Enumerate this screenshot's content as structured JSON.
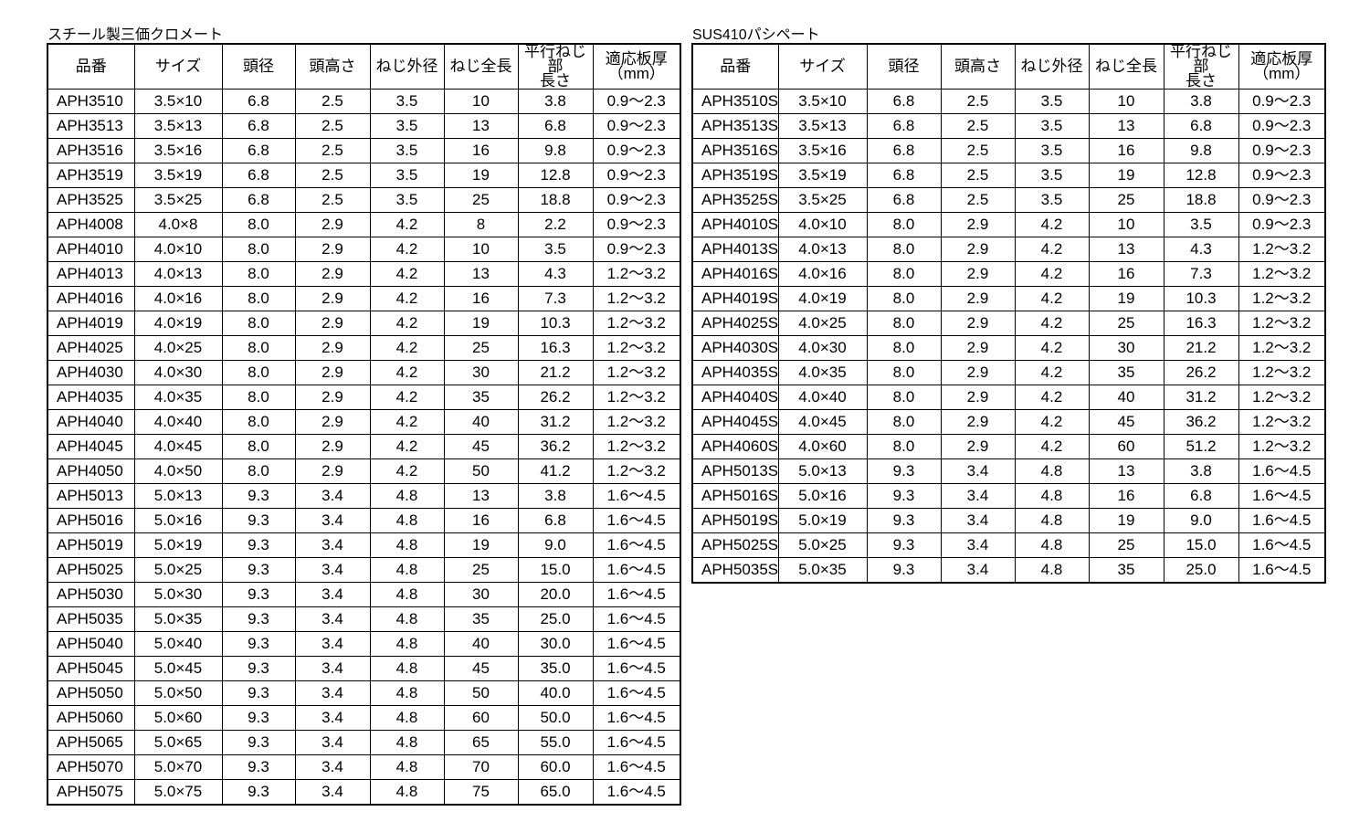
{
  "headers": [
    "品番",
    "サイズ",
    "頭径",
    "頭高さ",
    "ねじ外径",
    "ねじ全長",
    "平行ねじ部\n長さ",
    "適応板厚\n（mm）"
  ],
  "tables": [
    {
      "title": "スチール製三価クロメート",
      "rows": [
        [
          "APH3510",
          "3.5×10",
          "6.8",
          "2.5",
          "3.5",
          "10",
          "3.8",
          "0.9～2.3"
        ],
        [
          "APH3513",
          "3.5×13",
          "6.8",
          "2.5",
          "3.5",
          "13",
          "6.8",
          "0.9～2.3"
        ],
        [
          "APH3516",
          "3.5×16",
          "6.8",
          "2.5",
          "3.5",
          "16",
          "9.8",
          "0.9～2.3"
        ],
        [
          "APH3519",
          "3.5×19",
          "6.8",
          "2.5",
          "3.5",
          "19",
          "12.8",
          "0.9～2.3"
        ],
        [
          "APH3525",
          "3.5×25",
          "6.8",
          "2.5",
          "3.5",
          "25",
          "18.8",
          "0.9～2.3"
        ],
        [
          "APH4008",
          "4.0×8",
          "8.0",
          "2.9",
          "4.2",
          "8",
          "2.2",
          "0.9～2.3"
        ],
        [
          "APH4010",
          "4.0×10",
          "8.0",
          "2.9",
          "4.2",
          "10",
          "3.5",
          "0.9～2.3"
        ],
        [
          "APH4013",
          "4.0×13",
          "8.0",
          "2.9",
          "4.2",
          "13",
          "4.3",
          "1.2～3.2"
        ],
        [
          "APH4016",
          "4.0×16",
          "8.0",
          "2.9",
          "4.2",
          "16",
          "7.3",
          "1.2～3.2"
        ],
        [
          "APH4019",
          "4.0×19",
          "8.0",
          "2.9",
          "4.2",
          "19",
          "10.3",
          "1.2～3.2"
        ],
        [
          "APH4025",
          "4.0×25",
          "8.0",
          "2.9",
          "4.2",
          "25",
          "16.3",
          "1.2～3.2"
        ],
        [
          "APH4030",
          "4.0×30",
          "8.0",
          "2.9",
          "4.2",
          "30",
          "21.2",
          "1.2～3.2"
        ],
        [
          "APH4035",
          "4.0×35",
          "8.0",
          "2.9",
          "4.2",
          "35",
          "26.2",
          "1.2～3.2"
        ],
        [
          "APH4040",
          "4.0×40",
          "8.0",
          "2.9",
          "4.2",
          "40",
          "31.2",
          "1.2～3.2"
        ],
        [
          "APH4045",
          "4.0×45",
          "8.0",
          "2.9",
          "4.2",
          "45",
          "36.2",
          "1.2～3.2"
        ],
        [
          "APH4050",
          "4.0×50",
          "8.0",
          "2.9",
          "4.2",
          "50",
          "41.2",
          "1.2～3.2"
        ],
        [
          "APH5013",
          "5.0×13",
          "9.3",
          "3.4",
          "4.8",
          "13",
          "3.8",
          "1.6～4.5"
        ],
        [
          "APH5016",
          "5.0×16",
          "9.3",
          "3.4",
          "4.8",
          "16",
          "6.8",
          "1.6～4.5"
        ],
        [
          "APH5019",
          "5.0×19",
          "9.3",
          "3.4",
          "4.8",
          "19",
          "9.0",
          "1.6～4.5"
        ],
        [
          "APH5025",
          "5.0×25",
          "9.3",
          "3.4",
          "4.8",
          "25",
          "15.0",
          "1.6～4.5"
        ],
        [
          "APH5030",
          "5.0×30",
          "9.3",
          "3.4",
          "4.8",
          "30",
          "20.0",
          "1.6～4.5"
        ],
        [
          "APH5035",
          "5.0×35",
          "9.3",
          "3.4",
          "4.8",
          "35",
          "25.0",
          "1.6～4.5"
        ],
        [
          "APH5040",
          "5.0×40",
          "9.3",
          "3.4",
          "4.8",
          "40",
          "30.0",
          "1.6～4.5"
        ],
        [
          "APH5045",
          "5.0×45",
          "9.3",
          "3.4",
          "4.8",
          "45",
          "35.0",
          "1.6～4.5"
        ],
        [
          "APH5050",
          "5.0×50",
          "9.3",
          "3.4",
          "4.8",
          "50",
          "40.0",
          "1.6～4.5"
        ],
        [
          "APH5060",
          "5.0×60",
          "9.3",
          "3.4",
          "4.8",
          "60",
          "50.0",
          "1.6～4.5"
        ],
        [
          "APH5065",
          "5.0×65",
          "9.3",
          "3.4",
          "4.8",
          "65",
          "55.0",
          "1.6～4.5"
        ],
        [
          "APH5070",
          "5.0×70",
          "9.3",
          "3.4",
          "4.8",
          "70",
          "60.0",
          "1.6～4.5"
        ],
        [
          "APH5075",
          "5.0×75",
          "9.3",
          "3.4",
          "4.8",
          "75",
          "65.0",
          "1.6～4.5"
        ]
      ]
    },
    {
      "title": "SUS410パシペート",
      "rows": [
        [
          "APH3510S",
          "3.5×10",
          "6.8",
          "2.5",
          "3.5",
          "10",
          "3.8",
          "0.9～2.3"
        ],
        [
          "APH3513S",
          "3.5×13",
          "6.8",
          "2.5",
          "3.5",
          "13",
          "6.8",
          "0.9～2.3"
        ],
        [
          "APH3516S",
          "3.5×16",
          "6.8",
          "2.5",
          "3.5",
          "16",
          "9.8",
          "0.9～2.3"
        ],
        [
          "APH3519S",
          "3.5×19",
          "6.8",
          "2.5",
          "3.5",
          "19",
          "12.8",
          "0.9～2.3"
        ],
        [
          "APH3525S",
          "3.5×25",
          "6.8",
          "2.5",
          "3.5",
          "25",
          "18.8",
          "0.9～2.3"
        ],
        [
          "APH4010S",
          "4.0×10",
          "8.0",
          "2.9",
          "4.2",
          "10",
          "3.5",
          "0.9～2.3"
        ],
        [
          "APH4013S",
          "4.0×13",
          "8.0",
          "2.9",
          "4.2",
          "13",
          "4.3",
          "1.2～3.2"
        ],
        [
          "APH4016S",
          "4.0×16",
          "8.0",
          "2.9",
          "4.2",
          "16",
          "7.3",
          "1.2～3.2"
        ],
        [
          "APH4019S",
          "4.0×19",
          "8.0",
          "2.9",
          "4.2",
          "19",
          "10.3",
          "1.2～3.2"
        ],
        [
          "APH4025S",
          "4.0×25",
          "8.0",
          "2.9",
          "4.2",
          "25",
          "16.3",
          "1.2～3.2"
        ],
        [
          "APH4030S",
          "4.0×30",
          "8.0",
          "2.9",
          "4.2",
          "30",
          "21.2",
          "1.2～3.2"
        ],
        [
          "APH4035S",
          "4.0×35",
          "8.0",
          "2.9",
          "4.2",
          "35",
          "26.2",
          "1.2～3.2"
        ],
        [
          "APH4040S",
          "4.0×40",
          "8.0",
          "2.9",
          "4.2",
          "40",
          "31.2",
          "1.2～3.2"
        ],
        [
          "APH4045S",
          "4.0×45",
          "8.0",
          "2.9",
          "4.2",
          "45",
          "36.2",
          "1.2～3.2"
        ],
        [
          "APH4060S",
          "4.0×60",
          "8.0",
          "2.9",
          "4.2",
          "60",
          "51.2",
          "1.2～3.2"
        ],
        [
          "APH5013S",
          "5.0×13",
          "9.3",
          "3.4",
          "4.8",
          "13",
          "3.8",
          "1.6～4.5"
        ],
        [
          "APH5016S",
          "5.0×16",
          "9.3",
          "3.4",
          "4.8",
          "16",
          "6.8",
          "1.6～4.5"
        ],
        [
          "APH5019S",
          "5.0×19",
          "9.3",
          "3.4",
          "4.8",
          "19",
          "9.0",
          "1.6～4.5"
        ],
        [
          "APH5025S",
          "5.0×25",
          "9.3",
          "3.4",
          "4.8",
          "25",
          "15.0",
          "1.6～4.5"
        ],
        [
          "APH5035S",
          "5.0×35",
          "9.3",
          "3.4",
          "4.8",
          "35",
          "25.0",
          "1.6～4.5"
        ]
      ]
    }
  ]
}
